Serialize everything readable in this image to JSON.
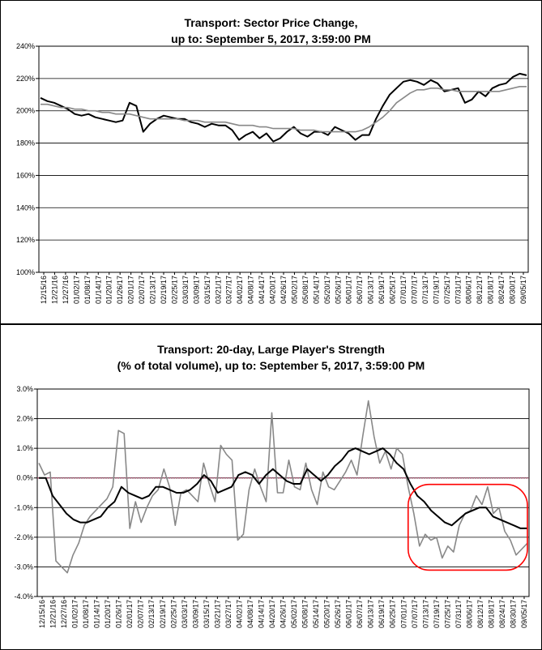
{
  "chart_data": [
    {
      "type": "line",
      "title": "Transport: Sector Price Change,",
      "subtitle": "up to: September 5, 2017, 3:59:00 PM",
      "xlabel": "",
      "ylabel": "",
      "ylim": [
        1.0,
        2.4
      ],
      "yticks": [
        "100%",
        "120%",
        "140%",
        "160%",
        "180%",
        "200%",
        "220%",
        "240%"
      ],
      "xticks": [
        "12/15/16",
        "12/21/16",
        "12/27/16",
        "01/02/17",
        "01/08/17",
        "01/14/17",
        "01/20/17",
        "01/26/17",
        "02/01/17",
        "02/07/17",
        "02/13/17",
        "02/19/17",
        "02/25/17",
        "03/03/17",
        "03/09/17",
        "03/15/17",
        "03/21/17",
        "03/27/17",
        "04/02/17",
        "04/08/17",
        "04/14/17",
        "04/20/17",
        "04/26/17",
        "05/02/17",
        "05/08/17",
        "05/14/17",
        "05/20/17",
        "05/26/17",
        "06/01/17",
        "06/07/17",
        "06/13/17",
        "06/19/17",
        "06/25/17",
        "07/01/17",
        "07/07/17",
        "07/13/17",
        "07/19/17",
        "07/25/17",
        "07/31/17",
        "08/06/17",
        "08/12/17",
        "08/18/17",
        "08/24/17",
        "08/30/17",
        "09/05/17"
      ],
      "grid": true,
      "series": [
        {
          "color": "#000000",
          "values": [
            2.08,
            2.06,
            2.05,
            2.03,
            2.01,
            1.98,
            1.97,
            1.98,
            1.96,
            1.95,
            1.94,
            1.93,
            1.94,
            2.05,
            2.03,
            1.87,
            1.92,
            1.95,
            1.97,
            1.96,
            1.95,
            1.95,
            1.93,
            1.92,
            1.9,
            1.92,
            1.91,
            1.91,
            1.88,
            1.82,
            1.85,
            1.87,
            1.83,
            1.86,
            1.81,
            1.83,
            1.87,
            1.9,
            1.86,
            1.84,
            1.87,
            1.87,
            1.85,
            1.9,
            1.88,
            1.86,
            1.82,
            1.85,
            1.85,
            1.95,
            2.03,
            2.1,
            2.14,
            2.18,
            2.19,
            2.18,
            2.16,
            2.19,
            2.17,
            2.12,
            2.13,
            2.14,
            2.05,
            2.07,
            2.12,
            2.09,
            2.14,
            2.16,
            2.17,
            2.21,
            2.23,
            2.22
          ]
        },
        {
          "color": "#888888",
          "values": [
            2.04,
            2.04,
            2.03,
            2.02,
            2.02,
            2.01,
            2.01,
            2.0,
            2.0,
            1.99,
            1.99,
            1.98,
            1.98,
            1.98,
            1.97,
            1.96,
            1.95,
            1.95,
            1.95,
            1.95,
            1.95,
            1.94,
            1.94,
            1.94,
            1.93,
            1.93,
            1.93,
            1.93,
            1.92,
            1.91,
            1.91,
            1.91,
            1.9,
            1.9,
            1.89,
            1.89,
            1.89,
            1.89,
            1.88,
            1.88,
            1.88,
            1.87,
            1.87,
            1.87,
            1.87,
            1.87,
            1.87,
            1.88,
            1.9,
            1.93,
            1.96,
            2.0,
            2.05,
            2.08,
            2.11,
            2.13,
            2.13,
            2.14,
            2.14,
            2.13,
            2.13,
            2.12,
            2.12,
            2.12,
            2.12,
            2.12,
            2.12,
            2.12,
            2.13,
            2.14,
            2.15,
            2.15
          ]
        }
      ]
    },
    {
      "type": "line",
      "title": "Transport: 20-day, Large Player's Strength",
      "subtitle": "(% of total volume), up to: September 5, 2017, 3:59:00 PM",
      "xlabel": "",
      "ylabel": "",
      "ylim": [
        -4.0,
        3.0
      ],
      "yticks": [
        "-4.0%",
        "-3.0%",
        "-2.0%",
        "-1.0%",
        "0.0%",
        "1.0%",
        "2.0%",
        "3.0%"
      ],
      "xticks": [
        "12/15/16",
        "12/21/16",
        "12/27/16",
        "01/02/17",
        "01/08/17",
        "01/14/17",
        "01/20/17",
        "01/26/17",
        "02/01/17",
        "02/07/17",
        "02/13/17",
        "02/19/17",
        "02/25/17",
        "03/03/17",
        "03/09/17",
        "03/15/17",
        "03/21/17",
        "03/27/17",
        "04/02/17",
        "04/08/17",
        "04/14/17",
        "04/20/17",
        "04/26/17",
        "05/02/17",
        "05/08/17",
        "05/14/17",
        "05/20/17",
        "05/26/17",
        "06/01/17",
        "06/07/17",
        "06/13/17",
        "06/19/17",
        "06/25/17",
        "07/01/17",
        "07/07/17",
        "07/13/17",
        "07/19/17",
        "07/25/17",
        "07/31/17",
        "08/06/17",
        "08/12/17",
        "08/18/17",
        "08/24/17",
        "08/30/17",
        "09/05/17"
      ],
      "grid": true,
      "reference_line": {
        "value": 0.0,
        "color": "#9a3a5a"
      },
      "annotation": {
        "type": "ellipse-highlight",
        "color": "#ff0000",
        "x_from": "07/07/17",
        "x_to": "09/05/17",
        "y_from": -3.0,
        "y_to": 0.0
      },
      "series": [
        {
          "color": "#888888",
          "values": [
            0.5,
            0.1,
            0.2,
            -2.8,
            -3.0,
            -3.2,
            -2.6,
            -2.2,
            -1.6,
            -1.3,
            -1.1,
            -0.9,
            -0.7,
            -0.3,
            1.6,
            1.5,
            -1.7,
            -0.8,
            -1.5,
            -1.0,
            -0.6,
            -0.4,
            0.3,
            -0.3,
            -1.6,
            -0.5,
            -0.4,
            -0.6,
            -0.8,
            0.5,
            -0.2,
            -0.8,
            1.1,
            0.8,
            0.6,
            -2.1,
            -1.9,
            -0.4,
            0.3,
            -0.3,
            -0.8,
            2.2,
            -0.5,
            -0.5,
            0.6,
            -0.3,
            -0.4,
            0.5,
            -0.4,
            -0.9,
            0.2,
            -0.3,
            -0.4,
            -0.1,
            0.2,
            0.6,
            0.1,
            1.4,
            2.6,
            1.4,
            0.5,
            0.9,
            0.3,
            1.0,
            0.8,
            -0.3,
            -1.2,
            -2.3,
            -1.9,
            -2.1,
            -2.0,
            -2.7,
            -2.3,
            -2.5,
            -1.6,
            -1.2,
            -1.1,
            -0.6,
            -0.9,
            -0.3,
            -1.2,
            -1.0,
            -1.8,
            -2.1,
            -2.6,
            -2.4,
            -2.2
          ]
        },
        {
          "color": "#000000",
          "values": [
            0.0,
            0.0,
            -0.6,
            -0.9,
            -1.2,
            -1.4,
            -1.5,
            -1.5,
            -1.4,
            -1.3,
            -1.0,
            -0.8,
            -0.3,
            -0.5,
            -0.6,
            -0.7,
            -0.6,
            -0.3,
            -0.3,
            -0.4,
            -0.5,
            -0.5,
            -0.4,
            -0.2,
            0.1,
            -0.1,
            -0.5,
            -0.4,
            -0.3,
            0.1,
            0.2,
            0.1,
            -0.2,
            0.1,
            0.3,
            0.1,
            -0.1,
            -0.2,
            -0.2,
            0.3,
            0.1,
            -0.1,
            0.1,
            0.4,
            0.6,
            0.9,
            1.0,
            0.9,
            0.8,
            0.9,
            1.0,
            0.8,
            0.5,
            0.3,
            -0.2,
            -0.6,
            -0.8,
            -1.1,
            -1.3,
            -1.5,
            -1.6,
            -1.4,
            -1.2,
            -1.1,
            -1.0,
            -1.0,
            -1.3,
            -1.4,
            -1.5,
            -1.6,
            -1.7,
            -1.7
          ]
        }
      ]
    }
  ]
}
